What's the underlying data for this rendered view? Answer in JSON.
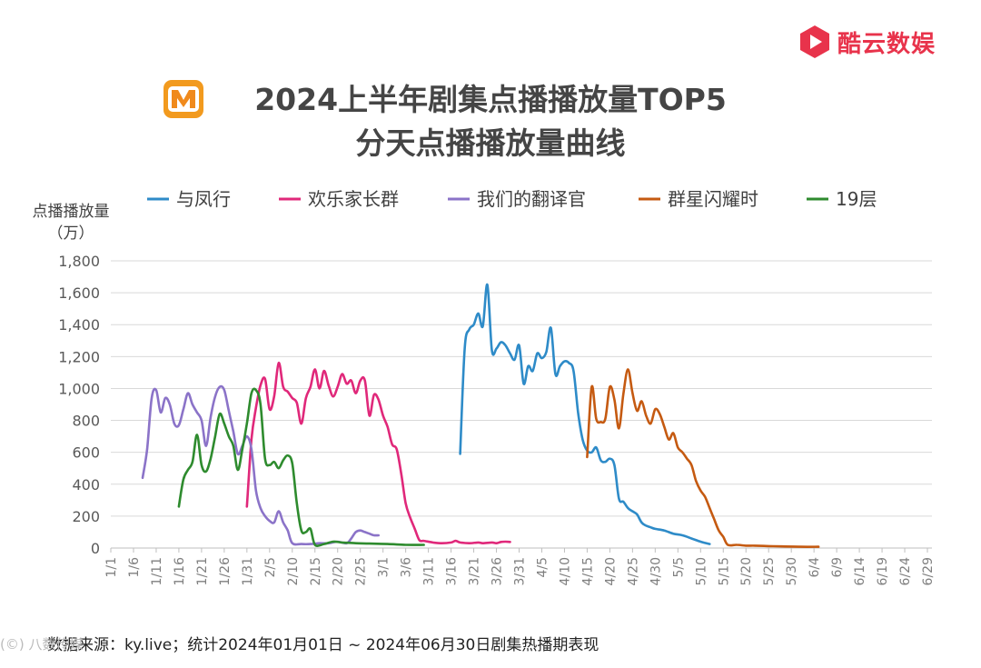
{
  "brand": {
    "name": "酷云数娱",
    "color": "#e8334b",
    "logo_icon": "play-hexagon-icon"
  },
  "header": {
    "logo_icon": "mango-tv-m-icon",
    "title_line1": "2024上半年剧集点播播放量TOP5",
    "title_line2": "分天点播播放量曲线"
  },
  "chart_data": {
    "type": "line",
    "ylabel": "点播播放量",
    "yunit": "（万）",
    "ylim": [
      0,
      1800
    ],
    "yticks": [
      0,
      200,
      400,
      600,
      800,
      1000,
      1200,
      1400,
      1600,
      1800
    ],
    "ytick_labels": [
      "0",
      "200",
      "400",
      "600",
      "800",
      "1,000",
      "1,200",
      "1,400",
      "1,600",
      "1,800"
    ],
    "x_start": "2024-01-01",
    "x_end": "2024-06-30",
    "xtick_labels": [
      "1/1",
      "1/6",
      "1/11",
      "1/16",
      "1/21",
      "1/26",
      "1/31",
      "2/5",
      "2/10",
      "2/15",
      "2/20",
      "2/25",
      "3/1",
      "3/6",
      "3/11",
      "3/16",
      "3/21",
      "3/26",
      "3/31",
      "4/5",
      "4/10",
      "4/15",
      "4/20",
      "4/25",
      "4/30",
      "5/5",
      "5/10",
      "5/15",
      "5/20",
      "5/25",
      "5/30",
      "6/4",
      "6/9",
      "6/14",
      "6/19",
      "6/24",
      "6/29"
    ],
    "grid": true,
    "legend_position": "top",
    "series": [
      {
        "name": "与凤行",
        "color": "#2e8bc8",
        "points": [
          [
            "3/18",
            590
          ],
          [
            "3/19",
            1250
          ],
          [
            "3/20",
            1370
          ],
          [
            "3/21",
            1400
          ],
          [
            "3/22",
            1470
          ],
          [
            "3/23",
            1390
          ],
          [
            "3/24",
            1650
          ],
          [
            "3/25",
            1240
          ],
          [
            "3/26",
            1250
          ],
          [
            "3/27",
            1290
          ],
          [
            "3/28",
            1270
          ],
          [
            "3/29",
            1220
          ],
          [
            "3/30",
            1180
          ],
          [
            "3/31",
            1270
          ],
          [
            "4/1",
            1030
          ],
          [
            "4/2",
            1140
          ],
          [
            "4/3",
            1110
          ],
          [
            "4/4",
            1220
          ],
          [
            "4/5",
            1190
          ],
          [
            "4/6",
            1230
          ],
          [
            "4/7",
            1380
          ],
          [
            "4/8",
            1090
          ],
          [
            "4/9",
            1140
          ],
          [
            "4/10",
            1170
          ],
          [
            "4/11",
            1160
          ],
          [
            "4/12",
            1110
          ],
          [
            "4/13",
            850
          ],
          [
            "4/14",
            680
          ],
          [
            "4/15",
            610
          ],
          [
            "4/16",
            600
          ],
          [
            "4/17",
            630
          ],
          [
            "4/18",
            550
          ],
          [
            "4/19",
            540
          ],
          [
            "4/20",
            560
          ],
          [
            "4/21",
            520
          ],
          [
            "4/22",
            310
          ],
          [
            "4/23",
            290
          ],
          [
            "4/24",
            250
          ],
          [
            "4/25",
            230
          ],
          [
            "4/26",
            210
          ],
          [
            "4/27",
            160
          ],
          [
            "4/28",
            140
          ],
          [
            "4/29",
            130
          ],
          [
            "4/30",
            120
          ],
          [
            "5/2",
            110
          ],
          [
            "5/4",
            90
          ],
          [
            "5/6",
            80
          ],
          [
            "5/8",
            60
          ],
          [
            "5/10",
            40
          ],
          [
            "5/12",
            25
          ]
        ]
      },
      {
        "name": "欢乐家长群",
        "color": "#e0287a",
        "points": [
          [
            "1/31",
            260
          ],
          [
            "2/1",
            680
          ],
          [
            "2/2",
            880
          ],
          [
            "2/3",
            1020
          ],
          [
            "2/4",
            1060
          ],
          [
            "2/5",
            870
          ],
          [
            "2/6",
            950
          ],
          [
            "2/7",
            1160
          ],
          [
            "2/8",
            1010
          ],
          [
            "2/9",
            980
          ],
          [
            "2/10",
            940
          ],
          [
            "2/11",
            910
          ],
          [
            "2/12",
            780
          ],
          [
            "2/13",
            940
          ],
          [
            "2/14",
            1010
          ],
          [
            "2/15",
            1120
          ],
          [
            "2/16",
            1000
          ],
          [
            "2/17",
            1110
          ],
          [
            "2/18",
            1020
          ],
          [
            "2/19",
            950
          ],
          [
            "2/20",
            1010
          ],
          [
            "2/21",
            1090
          ],
          [
            "2/22",
            1030
          ],
          [
            "2/23",
            1050
          ],
          [
            "2/24",
            970
          ],
          [
            "2/25",
            1050
          ],
          [
            "2/26",
            1050
          ],
          [
            "2/27",
            830
          ],
          [
            "2/28",
            960
          ],
          [
            "2/29",
            930
          ],
          [
            "3/1",
            830
          ],
          [
            "3/2",
            760
          ],
          [
            "3/3",
            650
          ],
          [
            "3/4",
            620
          ],
          [
            "3/5",
            470
          ],
          [
            "3/6",
            280
          ],
          [
            "3/7",
            190
          ],
          [
            "3/8",
            120
          ],
          [
            "3/9",
            50
          ],
          [
            "3/10",
            45
          ],
          [
            "3/12",
            35
          ],
          [
            "3/14",
            30
          ],
          [
            "3/16",
            35
          ],
          [
            "3/17",
            45
          ],
          [
            "3/18",
            35
          ],
          [
            "3/20",
            30
          ],
          [
            "3/22",
            35
          ],
          [
            "3/23",
            30
          ],
          [
            "3/25",
            35
          ],
          [
            "3/26",
            30
          ],
          [
            "3/27",
            38
          ],
          [
            "3/28",
            40
          ],
          [
            "3/29",
            38
          ]
        ]
      },
      {
        "name": "我们的翻译官",
        "color": "#8b73c8",
        "points": [
          [
            "1/8",
            440
          ],
          [
            "1/9",
            620
          ],
          [
            "1/10",
            940
          ],
          [
            "1/11",
            990
          ],
          [
            "1/12",
            850
          ],
          [
            "1/13",
            940
          ],
          [
            "1/14",
            900
          ],
          [
            "1/15",
            780
          ],
          [
            "1/16",
            770
          ],
          [
            "1/17",
            870
          ],
          [
            "1/18",
            970
          ],
          [
            "1/19",
            900
          ],
          [
            "1/20",
            850
          ],
          [
            "1/21",
            800
          ],
          [
            "1/22",
            640
          ],
          [
            "1/23",
            820
          ],
          [
            "1/24",
            950
          ],
          [
            "1/25",
            1010
          ],
          [
            "1/26",
            990
          ],
          [
            "1/27",
            860
          ],
          [
            "1/28",
            730
          ],
          [
            "1/29",
            590
          ],
          [
            "1/30",
            640
          ],
          [
            "1/31",
            700
          ],
          [
            "2/1",
            620
          ],
          [
            "2/2",
            360
          ],
          [
            "2/3",
            250
          ],
          [
            "2/4",
            200
          ],
          [
            "2/5",
            170
          ],
          [
            "2/6",
            160
          ],
          [
            "2/7",
            230
          ],
          [
            "2/8",
            160
          ],
          [
            "2/9",
            110
          ],
          [
            "2/10",
            30
          ],
          [
            "2/12",
            25
          ],
          [
            "2/14",
            25
          ],
          [
            "2/16",
            30
          ],
          [
            "2/18",
            30
          ],
          [
            "2/20",
            40
          ],
          [
            "2/22",
            30
          ],
          [
            "2/23",
            60
          ],
          [
            "2/24",
            100
          ],
          [
            "2/25",
            110
          ],
          [
            "2/26",
            100
          ],
          [
            "2/27",
            90
          ],
          [
            "2/28",
            80
          ],
          [
            "2/29",
            80
          ]
        ]
      },
      {
        "name": "群星闪耀时",
        "color": "#c55a11",
        "points": [
          [
            "4/15",
            570
          ],
          [
            "4/16",
            1010
          ],
          [
            "4/17",
            810
          ],
          [
            "4/18",
            790
          ],
          [
            "4/19",
            810
          ],
          [
            "4/20",
            1010
          ],
          [
            "4/21",
            930
          ],
          [
            "4/22",
            750
          ],
          [
            "4/23",
            970
          ],
          [
            "4/24",
            1120
          ],
          [
            "4/25",
            970
          ],
          [
            "4/26",
            860
          ],
          [
            "4/27",
            920
          ],
          [
            "4/28",
            830
          ],
          [
            "4/29",
            780
          ],
          [
            "4/30",
            870
          ],
          [
            "5/1",
            840
          ],
          [
            "5/2",
            760
          ],
          [
            "5/3",
            680
          ],
          [
            "5/4",
            720
          ],
          [
            "5/5",
            630
          ],
          [
            "5/6",
            600
          ],
          [
            "5/7",
            560
          ],
          [
            "5/8",
            520
          ],
          [
            "5/9",
            420
          ],
          [
            "5/10",
            360
          ],
          [
            "5/11",
            320
          ],
          [
            "5/12",
            250
          ],
          [
            "5/13",
            180
          ],
          [
            "5/14",
            110
          ],
          [
            "5/15",
            70
          ],
          [
            "5/16",
            20
          ],
          [
            "5/18",
            20
          ],
          [
            "5/20",
            15
          ],
          [
            "5/22",
            15
          ],
          [
            "5/25",
            12
          ],
          [
            "5/28",
            10
          ],
          [
            "6/1",
            8
          ],
          [
            "6/5",
            8
          ]
        ]
      },
      {
        "name": "19层",
        "color": "#2e8b2e",
        "points": [
          [
            "1/16",
            260
          ],
          [
            "1/17",
            430
          ],
          [
            "1/18",
            490
          ],
          [
            "1/19",
            540
          ],
          [
            "1/20",
            710
          ],
          [
            "1/21",
            520
          ],
          [
            "1/22",
            480
          ],
          [
            "1/23",
            560
          ],
          [
            "1/24",
            700
          ],
          [
            "1/25",
            840
          ],
          [
            "1/26",
            780
          ],
          [
            "1/27",
            700
          ],
          [
            "1/28",
            640
          ],
          [
            "1/29",
            490
          ],
          [
            "1/30",
            620
          ],
          [
            "1/31",
            780
          ],
          [
            "2/1",
            970
          ],
          [
            "2/2",
            990
          ],
          [
            "2/3",
            900
          ],
          [
            "2/4",
            560
          ],
          [
            "2/5",
            520
          ],
          [
            "2/6",
            540
          ],
          [
            "2/7",
            500
          ],
          [
            "2/8",
            550
          ],
          [
            "2/9",
            580
          ],
          [
            "2/10",
            530
          ],
          [
            "2/11",
            280
          ],
          [
            "2/12",
            110
          ],
          [
            "2/13",
            100
          ],
          [
            "2/14",
            120
          ],
          [
            "2/15",
            20
          ],
          [
            "2/17",
            25
          ],
          [
            "2/19",
            40
          ],
          [
            "2/21",
            35
          ],
          [
            "2/24",
            30
          ],
          [
            "2/27",
            28
          ],
          [
            "3/2",
            25
          ],
          [
            "3/6",
            20
          ],
          [
            "3/10",
            20
          ]
        ]
      }
    ]
  },
  "footer": {
    "source_note": "数据来源：ky.live；统计2024年01月01日 ~ 2024年06月30日剧集热播期表现",
    "watermark": "(©) 八数传媒"
  }
}
